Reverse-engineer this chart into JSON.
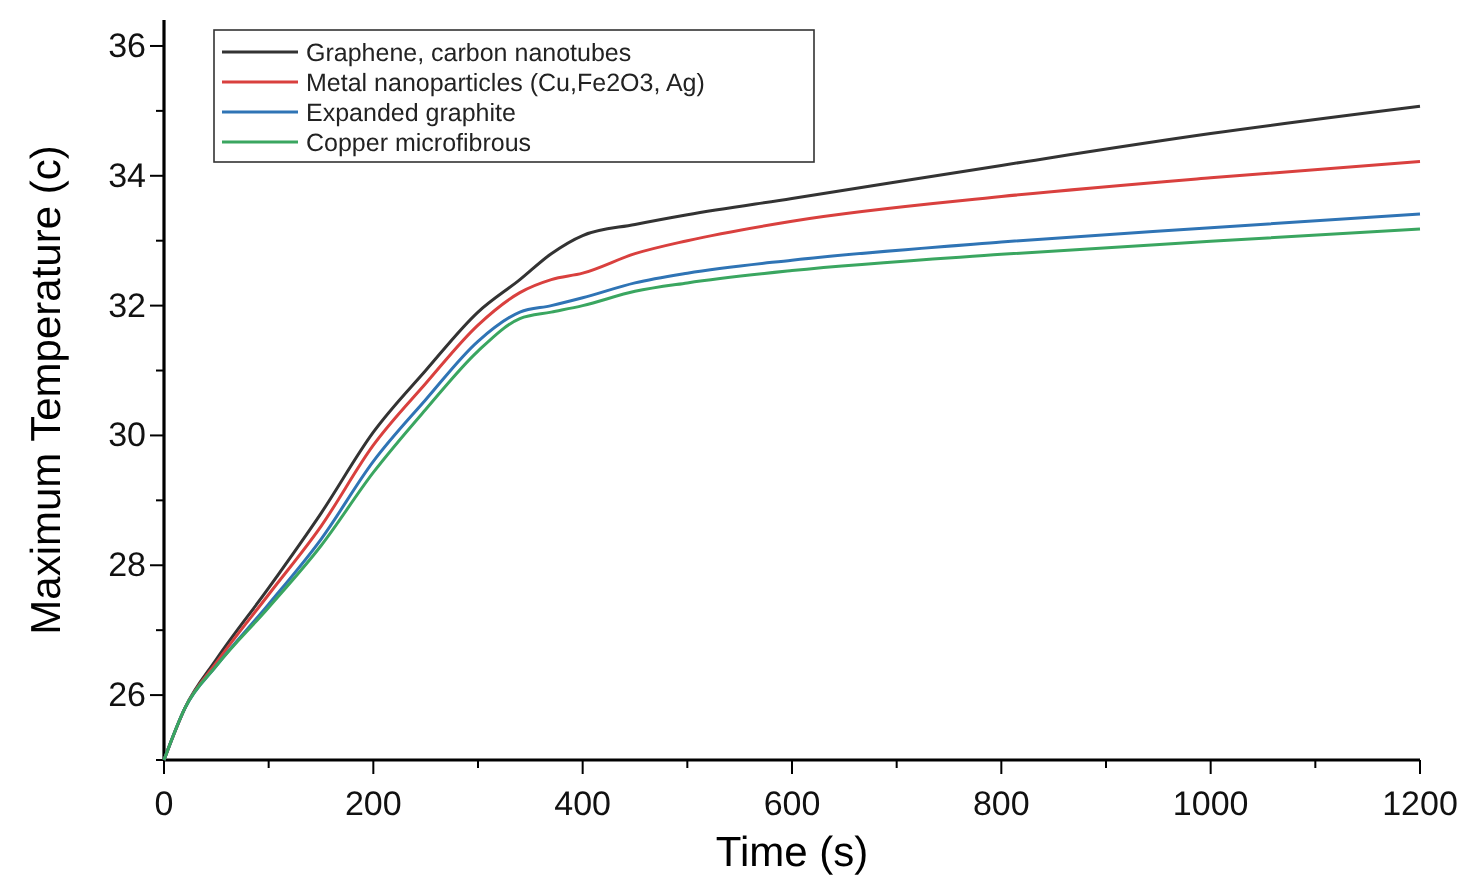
{
  "chart_data": {
    "type": "line",
    "xlabel": "Time (s)",
    "ylabel": "Maximum Temperature (c)",
    "x": [
      0,
      20,
      50,
      100,
      150,
      200,
      250,
      300,
      340,
      370,
      400,
      450,
      500,
      600,
      800,
      1000,
      1200
    ],
    "xlim": [
      0,
      1200
    ],
    "ylim": [
      25,
      36.4
    ],
    "xticks": [
      0,
      {
        "value": 100,
        "label": null
      },
      200,
      {
        "value": 300,
        "label": null
      },
      400,
      {
        "value": 500,
        "label": null
      },
      600,
      {
        "value": 700,
        "label": null
      },
      800,
      {
        "value": 900,
        "label": null
      },
      1000,
      {
        "value": 1100,
        "label": null
      },
      1200
    ],
    "yticks": [
      {
        "value": 25,
        "label": null
      },
      26,
      {
        "value": 27,
        "label": null
      },
      28,
      {
        "value": 29,
        "label": null
      },
      30,
      {
        "value": 31,
        "label": null
      },
      32,
      {
        "value": 33,
        "label": null
      },
      34,
      {
        "value": 35,
        "label": null
      },
      36
    ],
    "grid": false,
    "legend": "top left",
    "marker": "none",
    "line_style": "solid",
    "series": [
      {
        "name": "Graphene, carbon nanotubes",
        "color": "#333333",
        "values": [
          25,
          25.8,
          26.55,
          27.65,
          28.8,
          30.05,
          31.0,
          31.9,
          32.4,
          32.8,
          33.08,
          33.25,
          33.4,
          33.65,
          34.16,
          34.65,
          35.07
        ]
      },
      {
        "name": "Metal nanoparticles (Cu,Fe2O3, Ag)",
        "color": "#d9403e",
        "values": [
          25,
          25.8,
          26.5,
          27.55,
          28.6,
          29.85,
          30.8,
          31.7,
          32.2,
          32.4,
          32.5,
          32.8,
          33.0,
          33.3,
          33.68,
          33.97,
          34.22
        ]
      },
      {
        "name": "Expanded graphite",
        "color": "#2f74b5",
        "values": [
          25,
          25.8,
          26.45,
          27.4,
          28.4,
          29.6,
          30.55,
          31.45,
          31.9,
          32.0,
          32.12,
          32.35,
          32.5,
          32.7,
          32.98,
          33.2,
          33.41
        ]
      },
      {
        "name": "Copper microfibrous",
        "color": "#3aa660",
        "values": [
          25,
          25.8,
          26.45,
          27.35,
          28.3,
          29.43,
          30.4,
          31.3,
          31.8,
          31.9,
          32.0,
          32.22,
          32.35,
          32.54,
          32.79,
          32.99,
          33.18
        ]
      }
    ]
  }
}
